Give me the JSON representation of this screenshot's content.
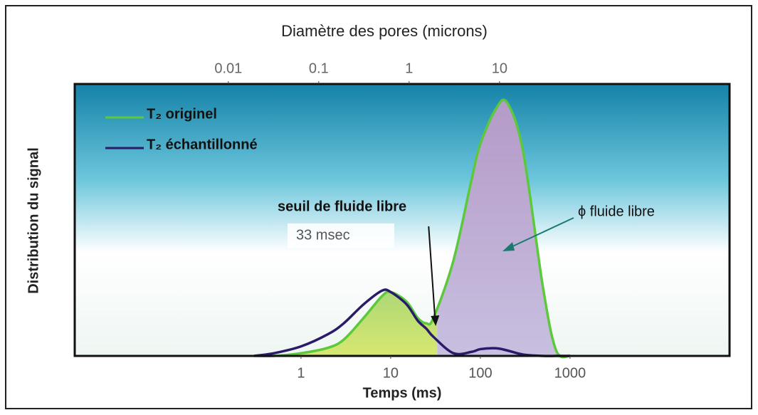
{
  "chart_data": {
    "type": "line",
    "title": "Diamètre des pores (microns)",
    "xlabel": "Temps (ms)",
    "ylabel": "Distribution du signal",
    "xscale": "log",
    "xlim": [
      0.003,
      60000
    ],
    "xticks": [
      1,
      10,
      100,
      1000
    ],
    "x2scale": "log",
    "x2lim": [
      0.0002,
      3500
    ],
    "x2ticks": [
      0.01,
      0.1,
      1,
      10
    ],
    "ylim": [
      0,
      100
    ],
    "x": [
      0.3,
      0.5,
      1,
      2,
      3,
      5,
      8,
      10,
      15,
      20,
      25,
      30,
      50,
      80,
      100,
      150,
      200,
      300,
      500,
      700,
      1000
    ],
    "series": [
      {
        "name": "T₂ originel",
        "color": "#5cc83c",
        "values": [
          0,
          0,
          1,
          3,
          6,
          14,
          22,
          23.5,
          20,
          14,
          12,
          14,
          35,
          65,
          78,
          91,
          93,
          75,
          25,
          2,
          0
        ]
      },
      {
        "name": "T₂ échantillonné",
        "color": "#2a1a6a",
        "values": [
          0,
          1,
          3.5,
          8,
          12,
          19,
          24,
          23.5,
          19,
          13,
          10,
          7,
          1,
          1.5,
          2.5,
          2.8,
          2,
          0.5,
          0,
          0,
          0
        ]
      }
    ],
    "threshold": {
      "value": 33,
      "label": "33 msec"
    },
    "annotations": [
      "seuil de fluide libre",
      "ϕ fluide libre"
    ],
    "legend": "upper left"
  }
}
